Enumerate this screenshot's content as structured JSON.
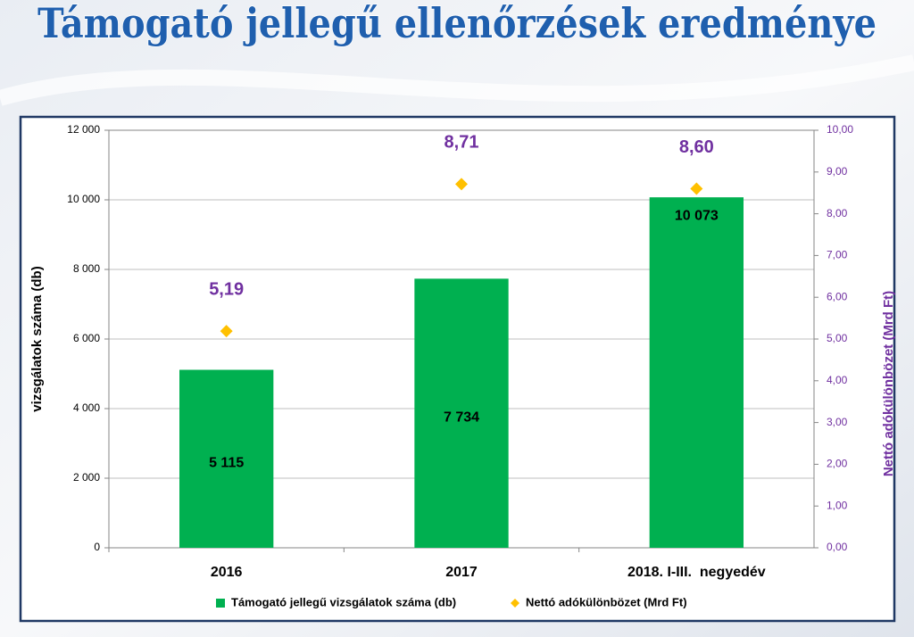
{
  "chart_data": {
    "type": "bar",
    "title": "Támogató jellegű ellenőrzések eredménye",
    "categories": [
      "2016",
      "2017",
      "2018. I-III.  negyedév"
    ],
    "series": [
      {
        "name": "Támogató jellegű vizsgálatok száma (db)",
        "type": "bar",
        "color": "#00b050",
        "values": [
          5115,
          7734,
          10073
        ],
        "value_labels": [
          "5 115",
          "7 734",
          "10 073"
        ]
      },
      {
        "name": "Nettó adókülönbözet (Mrd Ft)",
        "type": "marker",
        "axis": "y2",
        "color": "#ffc000",
        "values": [
          5.19,
          8.71,
          8.6
        ],
        "value_labels": [
          "5,19",
          "8,71",
          "8,60"
        ]
      }
    ],
    "ylabel": "vizsgálatok száma (db)",
    "y2label": "Nettó adókülönbözet (Mrd Ft)",
    "ylim": [
      0,
      12000
    ],
    "yticks": [
      0,
      {
        "value": 2000,
        "label": "2 000"
      },
      {
        "value": 4000,
        "label": "4 000"
      },
      {
        "value": 6000,
        "label": "6 000"
      },
      {
        "value": 8000,
        "label": "8 000"
      },
      {
        "value": 10000,
        "label": "10 000"
      },
      {
        "value": 12000,
        "label": "12 000"
      }
    ],
    "y2lim": [
      0,
      10
    ],
    "y2ticks": [
      {
        "value": 0,
        "label": "0,00"
      },
      {
        "value": 1,
        "label": "1,00"
      },
      {
        "value": 2,
        "label": "2,00"
      },
      {
        "value": 3,
        "label": "3,00"
      },
      {
        "value": 4,
        "label": "4,00"
      },
      {
        "value": 5,
        "label": "5,00"
      },
      {
        "value": 6,
        "label": "6,00"
      },
      {
        "value": 7,
        "label": "7,00"
      },
      {
        "value": 8,
        "label": "8,00"
      },
      {
        "value": 9,
        "label": "9,00"
      },
      {
        "value": 10,
        "label": "10,00"
      }
    ],
    "grid": true,
    "legend": "bottom"
  }
}
